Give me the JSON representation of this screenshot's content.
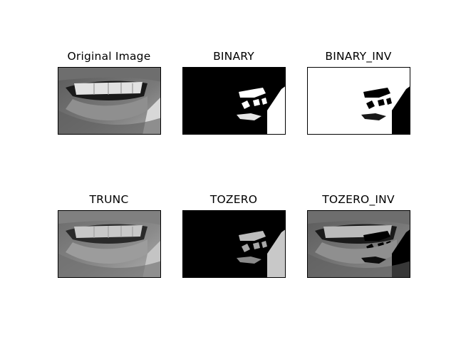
{
  "figure": {
    "panels": [
      {
        "id": "original",
        "title": "Original Image"
      },
      {
        "id": "binary",
        "title": "BINARY"
      },
      {
        "id": "binary_inv",
        "title": "BINARY_INV"
      },
      {
        "id": "trunc",
        "title": "TRUNC"
      },
      {
        "id": "tozero",
        "title": "TOZERO"
      },
      {
        "id": "tozero_inv",
        "title": "TOZERO_INV"
      }
    ]
  }
}
